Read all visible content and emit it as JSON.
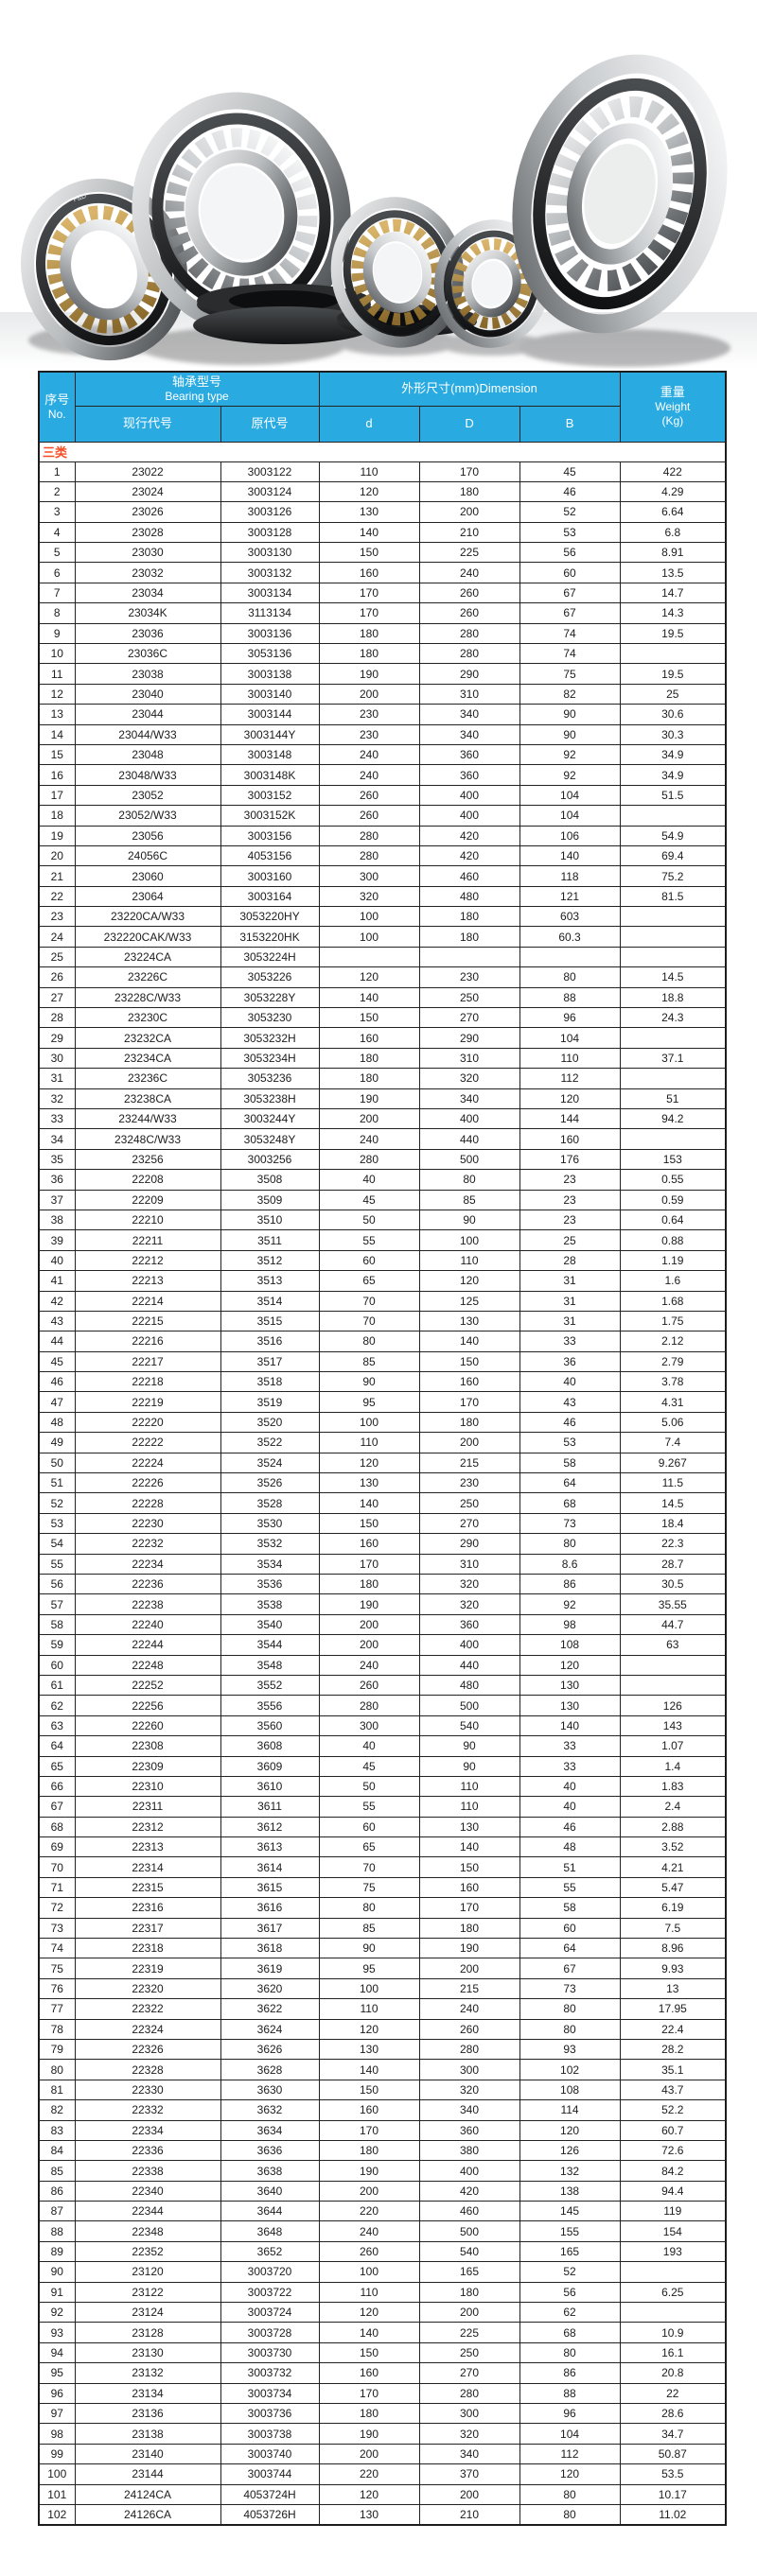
{
  "hero": {
    "name": "spherical-roller-bearings-photo",
    "brand_mark": "F&D"
  },
  "colors": {
    "header_bg": "#29abe2",
    "header_text": "#ffffff",
    "category_text": "#f84b21",
    "border": "#222222",
    "body_text": "#1d1d1d"
  },
  "table": {
    "header": {
      "no_zh": "序号",
      "no_en": "No.",
      "bearing_type_zh": "轴承型号",
      "bearing_type_en": "Bearing type",
      "current_code": "现行代号",
      "original_code": "原代号",
      "dimension": "外形尺寸(mm)Dimension",
      "d": "d",
      "D": "D",
      "B": "B",
      "weight_zh": "重量",
      "weight_en": "Weight",
      "weight_unit": "(Kg)"
    },
    "category_label": "三类",
    "column_keys": [
      "no",
      "current-code",
      "original-code",
      "d",
      "D",
      "B",
      "weight"
    ],
    "rows": [
      [
        "1",
        "23022",
        "3003122",
        "110",
        "170",
        "45",
        "422"
      ],
      [
        "2",
        "23024",
        "3003124",
        "120",
        "180",
        "46",
        "4.29"
      ],
      [
        "3",
        "23026",
        "3003126",
        "130",
        "200",
        "52",
        "6.64"
      ],
      [
        "4",
        "23028",
        "3003128",
        "140",
        "210",
        "53",
        "6.8"
      ],
      [
        "5",
        "23030",
        "3003130",
        "150",
        "225",
        "56",
        "8.91"
      ],
      [
        "6",
        "23032",
        "3003132",
        "160",
        "240",
        "60",
        "13.5"
      ],
      [
        "7",
        "23034",
        "3003134",
        "170",
        "260",
        "67",
        "14.7"
      ],
      [
        "8",
        "23034K",
        "3113134",
        "170",
        "260",
        "67",
        "14.3"
      ],
      [
        "9",
        "23036",
        "3003136",
        "180",
        "280",
        "74",
        "19.5"
      ],
      [
        "10",
        "23036C",
        "3053136",
        "180",
        "280",
        "74",
        ""
      ],
      [
        "11",
        "23038",
        "3003138",
        "190",
        "290",
        "75",
        "19.5"
      ],
      [
        "12",
        "23040",
        "3003140",
        "200",
        "310",
        "82",
        "25"
      ],
      [
        "13",
        "23044",
        "3003144",
        "230",
        "340",
        "90",
        "30.6"
      ],
      [
        "14",
        "23044/W33",
        "3003144Y",
        "230",
        "340",
        "90",
        "30.3"
      ],
      [
        "15",
        "23048",
        "3003148",
        "240",
        "360",
        "92",
        "34.9"
      ],
      [
        "16",
        "23048/W33",
        "3003148K",
        "240",
        "360",
        "92",
        "34.9"
      ],
      [
        "17",
        "23052",
        "3003152",
        "260",
        "400",
        "104",
        "51.5"
      ],
      [
        "18",
        "23052/W33",
        "3003152K",
        "260",
        "400",
        "104",
        ""
      ],
      [
        "19",
        "23056",
        "3003156",
        "280",
        "420",
        "106",
        "54.9"
      ],
      [
        "20",
        "24056C",
        "4053156",
        "280",
        "420",
        "140",
        "69.4"
      ],
      [
        "21",
        "23060",
        "3003160",
        "300",
        "460",
        "118",
        "75.2"
      ],
      [
        "22",
        "23064",
        "3003164",
        "320",
        "480",
        "121",
        "81.5"
      ],
      [
        "23",
        "23220CA/W33",
        "3053220HY",
        "100",
        "180",
        "603",
        ""
      ],
      [
        "24",
        "232220CAK/W33",
        "3153220HK",
        "100",
        "180",
        "60.3",
        ""
      ],
      [
        "25",
        "23224CA",
        "3053224H",
        "",
        "",
        "",
        ""
      ],
      [
        "26",
        "23226C",
        "3053226",
        "120",
        "230",
        "80",
        "14.5"
      ],
      [
        "27",
        "23228C/W33",
        "3053228Y",
        "140",
        "250",
        "88",
        "18.8"
      ],
      [
        "28",
        "23230C",
        "3053230",
        "150",
        "270",
        "96",
        "24.3"
      ],
      [
        "29",
        "23232CA",
        "3053232H",
        "160",
        "290",
        "104",
        ""
      ],
      [
        "30",
        "23234CA",
        "3053234H",
        "180",
        "310",
        "110",
        "37.1"
      ],
      [
        "31",
        "23236C",
        "3053236",
        "180",
        "320",
        "112",
        ""
      ],
      [
        "32",
        "23238CA",
        "3053238H",
        "190",
        "340",
        "120",
        "51"
      ],
      [
        "33",
        "23244/W33",
        "3003244Y",
        "200",
        "400",
        "144",
        "94.2"
      ],
      [
        "34",
        "23248C/W33",
        "3053248Y",
        "240",
        "440",
        "160",
        ""
      ],
      [
        "35",
        "23256",
        "3003256",
        "280",
        "500",
        "176",
        "153"
      ],
      [
        "36",
        "22208",
        "3508",
        "40",
        "80",
        "23",
        "0.55"
      ],
      [
        "37",
        "22209",
        "3509",
        "45",
        "85",
        "23",
        "0.59"
      ],
      [
        "38",
        "22210",
        "3510",
        "50",
        "90",
        "23",
        "0.64"
      ],
      [
        "39",
        "22211",
        "3511",
        "55",
        "100",
        "25",
        "0.88"
      ],
      [
        "40",
        "22212",
        "3512",
        "60",
        "110",
        "28",
        "1.19"
      ],
      [
        "41",
        "22213",
        "3513",
        "65",
        "120",
        "31",
        "1.6"
      ],
      [
        "42",
        "22214",
        "3514",
        "70",
        "125",
        "31",
        "1.68"
      ],
      [
        "43",
        "22215",
        "3515",
        "70",
        "130",
        "31",
        "1.75"
      ],
      [
        "44",
        "22216",
        "3516",
        "80",
        "140",
        "33",
        "2.12"
      ],
      [
        "45",
        "22217",
        "3517",
        "85",
        "150",
        "36",
        "2.79"
      ],
      [
        "46",
        "22218",
        "3518",
        "90",
        "160",
        "40",
        "3.78"
      ],
      [
        "47",
        "22219",
        "3519",
        "95",
        "170",
        "43",
        "4.31"
      ],
      [
        "48",
        "22220",
        "3520",
        "100",
        "180",
        "46",
        "5.06"
      ],
      [
        "49",
        "22222",
        "3522",
        "110",
        "200",
        "53",
        "7.4"
      ],
      [
        "50",
        "22224",
        "3524",
        "120",
        "215",
        "58",
        "9.267"
      ],
      [
        "51",
        "22226",
        "3526",
        "130",
        "230",
        "64",
        "11.5"
      ],
      [
        "52",
        "22228",
        "3528",
        "140",
        "250",
        "68",
        "14.5"
      ],
      [
        "53",
        "22230",
        "3530",
        "150",
        "270",
        "73",
        "18.4"
      ],
      [
        "54",
        "22232",
        "3532",
        "160",
        "290",
        "80",
        "22.3"
      ],
      [
        "55",
        "22234",
        "3534",
        "170",
        "310",
        "8.6",
        "28.7"
      ],
      [
        "56",
        "22236",
        "3536",
        "180",
        "320",
        "86",
        "30.5"
      ],
      [
        "57",
        "22238",
        "3538",
        "190",
        "320",
        "92",
        "35.55"
      ],
      [
        "58",
        "22240",
        "3540",
        "200",
        "360",
        "98",
        "44.7"
      ],
      [
        "59",
        "22244",
        "3544",
        "200",
        "400",
        "108",
        "63"
      ],
      [
        "60",
        "22248",
        "3548",
        "240",
        "440",
        "120",
        ""
      ],
      [
        "61",
        "22252",
        "3552",
        "260",
        "480",
        "130",
        ""
      ],
      [
        "62",
        "22256",
        "3556",
        "280",
        "500",
        "130",
        "126"
      ],
      [
        "63",
        "22260",
        "3560",
        "300",
        "540",
        "140",
        "143"
      ],
      [
        "64",
        "22308",
        "3608",
        "40",
        "90",
        "33",
        "1.07"
      ],
      [
        "65",
        "22309",
        "3609",
        "45",
        "90",
        "33",
        "1.4"
      ],
      [
        "66",
        "22310",
        "3610",
        "50",
        "110",
        "40",
        "1.83"
      ],
      [
        "67",
        "22311",
        "3611",
        "55",
        "110",
        "40",
        "2.4"
      ],
      [
        "68",
        "22312",
        "3612",
        "60",
        "130",
        "46",
        "2.88"
      ],
      [
        "69",
        "22313",
        "3613",
        "65",
        "140",
        "48",
        "3.52"
      ],
      [
        "70",
        "22314",
        "3614",
        "70",
        "150",
        "51",
        "4.21"
      ],
      [
        "71",
        "22315",
        "3615",
        "75",
        "160",
        "55",
        "5.47"
      ],
      [
        "72",
        "22316",
        "3616",
        "80",
        "170",
        "58",
        "6.19"
      ],
      [
        "73",
        "22317",
        "3617",
        "85",
        "180",
        "60",
        "7.5"
      ],
      [
        "74",
        "22318",
        "3618",
        "90",
        "190",
        "64",
        "8.96"
      ],
      [
        "75",
        "22319",
        "3619",
        "95",
        "200",
        "67",
        "9.93"
      ],
      [
        "76",
        "22320",
        "3620",
        "100",
        "215",
        "73",
        "13"
      ],
      [
        "77",
        "22322",
        "3622",
        "110",
        "240",
        "80",
        "17.95"
      ],
      [
        "78",
        "22324",
        "3624",
        "120",
        "260",
        "80",
        "22.4"
      ],
      [
        "79",
        "22326",
        "3626",
        "130",
        "280",
        "93",
        "28.2"
      ],
      [
        "80",
        "22328",
        "3628",
        "140",
        "300",
        "102",
        "35.1"
      ],
      [
        "81",
        "22330",
        "3630",
        "150",
        "320",
        "108",
        "43.7"
      ],
      [
        "82",
        "22332",
        "3632",
        "160",
        "340",
        "114",
        "52.2"
      ],
      [
        "83",
        "22334",
        "3634",
        "170",
        "360",
        "120",
        "60.7"
      ],
      [
        "84",
        "22336",
        "3636",
        "180",
        "380",
        "126",
        "72.6"
      ],
      [
        "85",
        "22338",
        "3638",
        "190",
        "400",
        "132",
        "84.2"
      ],
      [
        "86",
        "22340",
        "3640",
        "200",
        "420",
        "138",
        "94.4"
      ],
      [
        "87",
        "22344",
        "3644",
        "220",
        "460",
        "145",
        "119"
      ],
      [
        "88",
        "22348",
        "3648",
        "240",
        "500",
        "155",
        "154"
      ],
      [
        "89",
        "22352",
        "3652",
        "260",
        "540",
        "165",
        "193"
      ],
      [
        "90",
        "23120",
        "3003720",
        "100",
        "165",
        "52",
        ""
      ],
      [
        "91",
        "23122",
        "3003722",
        "110",
        "180",
        "56",
        "6.25"
      ],
      [
        "92",
        "23124",
        "3003724",
        "120",
        "200",
        "62",
        ""
      ],
      [
        "93",
        "23128",
        "3003728",
        "140",
        "225",
        "68",
        "10.9"
      ],
      [
        "94",
        "23130",
        "3003730",
        "150",
        "250",
        "80",
        "16.1"
      ],
      [
        "95",
        "23132",
        "3003732",
        "160",
        "270",
        "86",
        "20.8"
      ],
      [
        "96",
        "23134",
        "3003734",
        "170",
        "280",
        "88",
        "22"
      ],
      [
        "97",
        "23136",
        "3003736",
        "180",
        "300",
        "96",
        "28.6"
      ],
      [
        "98",
        "23138",
        "3003738",
        "190",
        "320",
        "104",
        "34.7"
      ],
      [
        "99",
        "23140",
        "3003740",
        "200",
        "340",
        "112",
        "50.87"
      ],
      [
        "100",
        "23144",
        "3003744",
        "220",
        "370",
        "120",
        "53.5"
      ],
      [
        "101",
        "24124CA",
        "4053724H",
        "120",
        "200",
        "80",
        "10.17"
      ],
      [
        "102",
        "24126CA",
        "4053726H",
        "130",
        "210",
        "80",
        "11.02"
      ]
    ]
  }
}
